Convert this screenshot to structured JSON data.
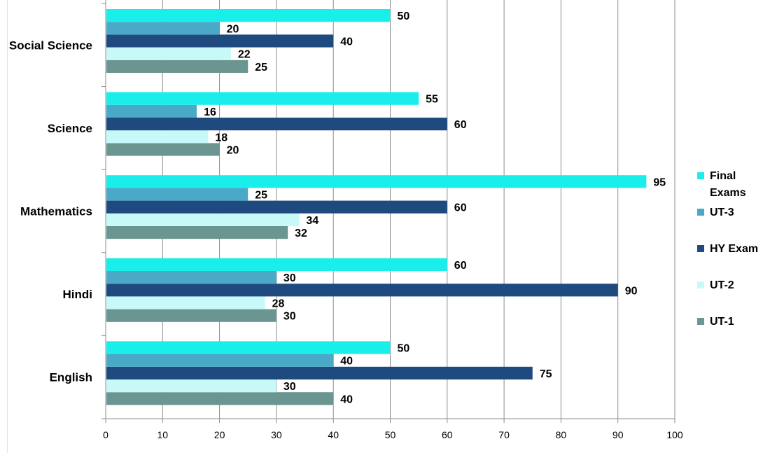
{
  "chart_data": {
    "type": "bar",
    "orientation": "horizontal",
    "categories": [
      "English",
      "Hindi",
      "Mathematics",
      "Science",
      "Social Science"
    ],
    "series": [
      {
        "name": "UT-1",
        "color": "#6a9590",
        "values": [
          40,
          30,
          32,
          20,
          25
        ]
      },
      {
        "name": "UT-2",
        "color": "#c8f9f9",
        "values": [
          30,
          28,
          34,
          18,
          22
        ]
      },
      {
        "name": "HY Exam",
        "color": "#1f4a7f",
        "values": [
          75,
          90,
          60,
          60,
          40
        ]
      },
      {
        "name": "UT-3",
        "color": "#4aa9c6",
        "values": [
          40,
          30,
          25,
          16,
          20
        ]
      },
      {
        "name": "Final Exams",
        "color": "#1aeeea",
        "values": [
          50,
          60,
          95,
          55,
          50
        ]
      }
    ],
    "xlim": [
      0,
      100
    ],
    "xticks": [
      "0",
      "10",
      "20",
      "30",
      "40",
      "50",
      "60",
      "70",
      "80",
      "90",
      "100"
    ],
    "grid": "vertical",
    "data_labels": true,
    "legend_position": "right",
    "title": "",
    "xlabel": "",
    "ylabel": ""
  }
}
